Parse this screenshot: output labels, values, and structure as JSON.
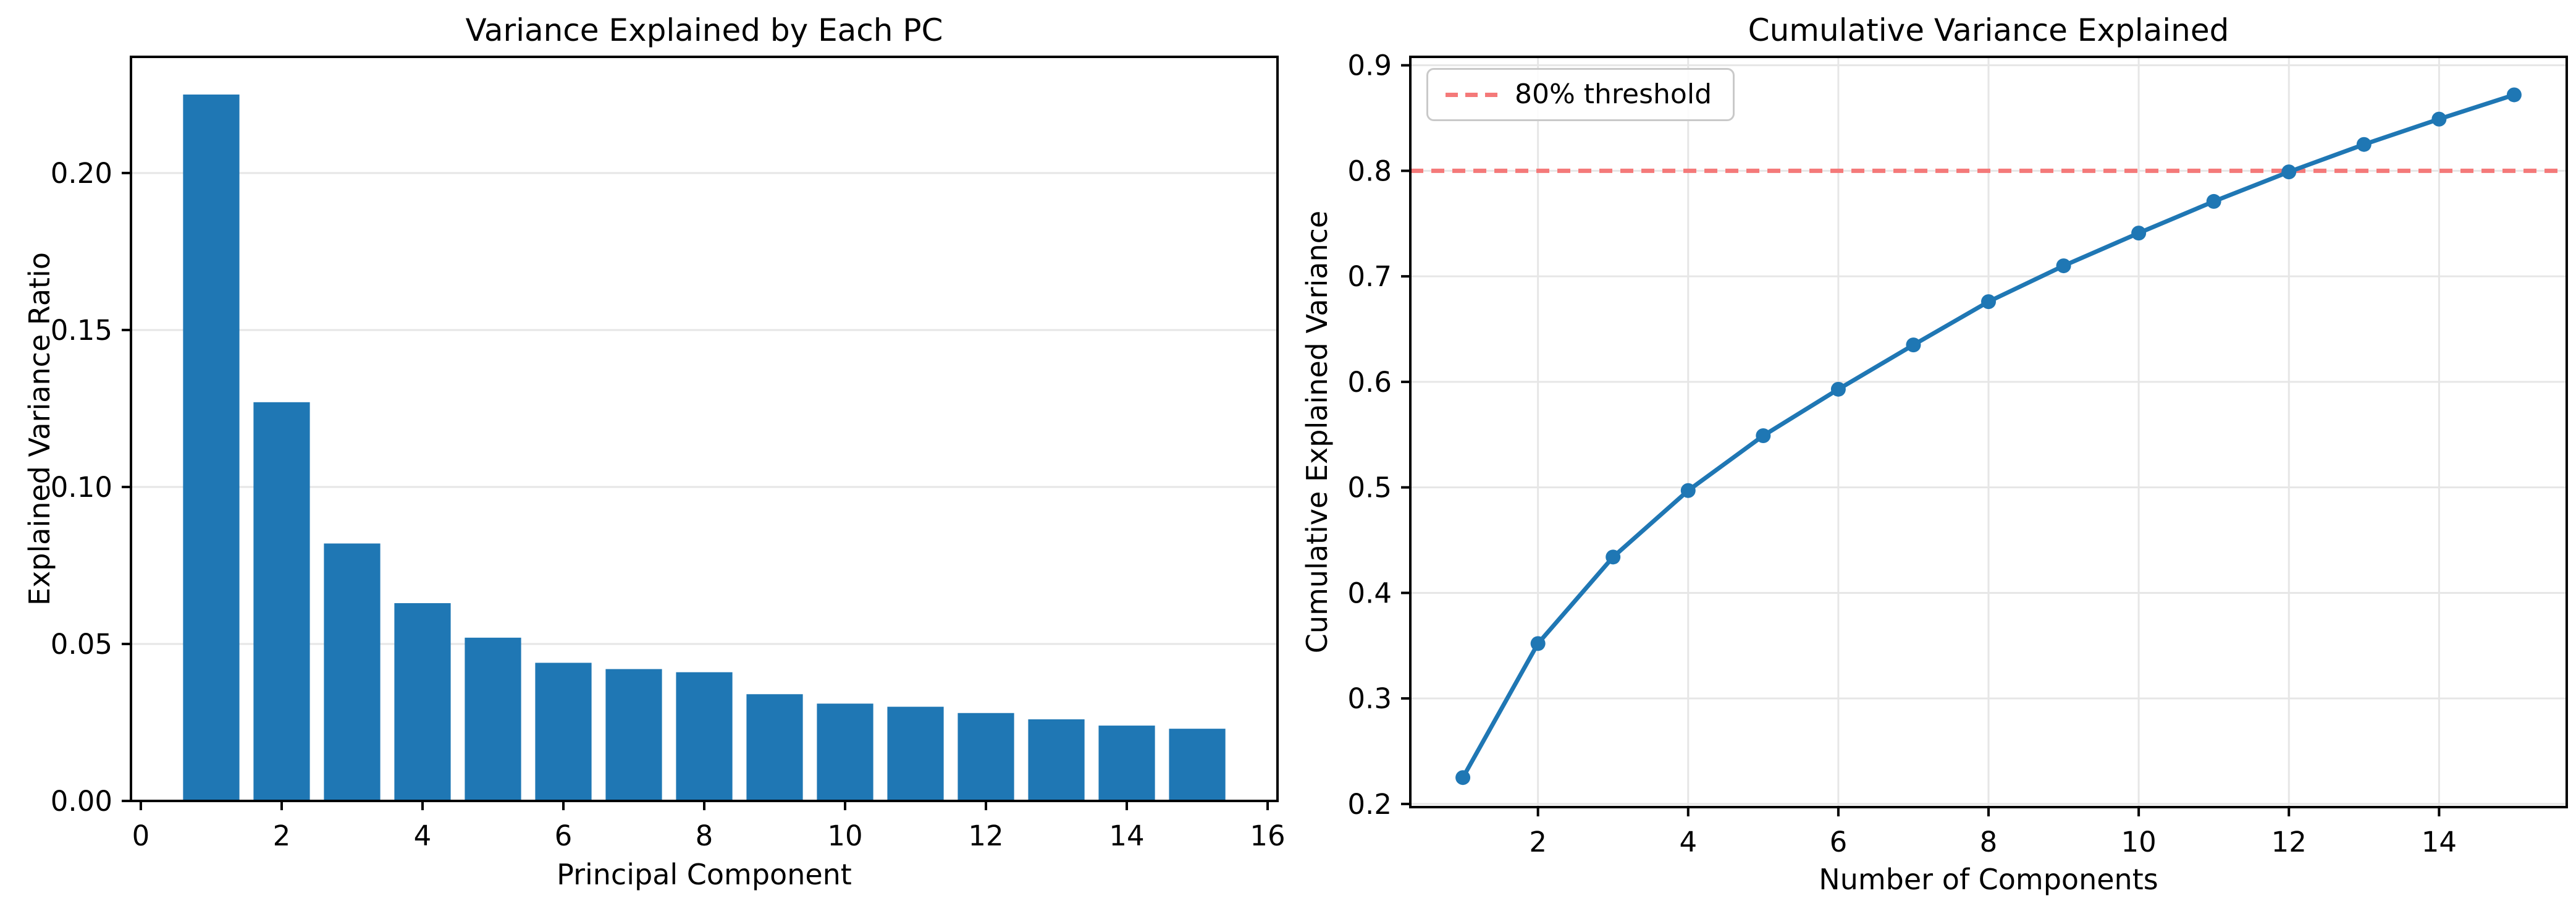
{
  "colors": {
    "series_blue": "#1f77b4",
    "threshold_red": "#f47979",
    "gridline": "#e6e6e6",
    "spine": "#000000",
    "background": "#ffffff",
    "legend_border": "#c9c9c9"
  },
  "chart_data": [
    {
      "type": "bar",
      "title": "Variance Explained by Each PC",
      "xlabel": "Principal Component",
      "ylabel": "Explained Variance Ratio",
      "categories": [
        1,
        2,
        3,
        4,
        5,
        6,
        7,
        8,
        9,
        10,
        11,
        12,
        13,
        14,
        15
      ],
      "values": [
        0.225,
        0.127,
        0.082,
        0.063,
        0.052,
        0.044,
        0.042,
        0.041,
        0.034,
        0.031,
        0.03,
        0.028,
        0.026,
        0.024,
        0.023
      ],
      "bar_color": "#1f77b4",
      "bar_width": 0.8,
      "xlim": [
        -0.14,
        16.14
      ],
      "ylim": [
        0,
        0.237
      ],
      "xticks": {
        "values": [
          0,
          2,
          4,
          6,
          8,
          10,
          12,
          14,
          16
        ],
        "labels": [
          "0",
          "2",
          "4",
          "6",
          "8",
          "10",
          "12",
          "14",
          "16"
        ]
      },
      "yticks": {
        "values": [
          0,
          0.05,
          0.1,
          0.15,
          0.2
        ],
        "labels": [
          "0.00",
          "0.05",
          "0.10",
          "0.15",
          "0.20"
        ]
      },
      "grid": "y",
      "legend": null
    },
    {
      "type": "line",
      "title": "Cumulative Variance Explained",
      "xlabel": "Number of Components",
      "ylabel": "Cumulative Explained Variance",
      "x": [
        1,
        2,
        3,
        4,
        5,
        6,
        7,
        8,
        9,
        10,
        11,
        12,
        13,
        14,
        15
      ],
      "y": [
        0.225,
        0.352,
        0.434,
        0.497,
        0.549,
        0.593,
        0.635,
        0.676,
        0.71,
        0.741,
        0.771,
        0.799,
        0.825,
        0.849,
        0.872
      ],
      "line_color": "#1f77b4",
      "marker": "o",
      "threshold_line": {
        "y": 0.8,
        "label": "80% threshold",
        "color": "#f47979",
        "style": "dashed"
      },
      "xlim": [
        0.3,
        15.7
      ],
      "ylim": [
        0.197,
        0.908
      ],
      "xticks": {
        "values": [
          2,
          4,
          6,
          8,
          10,
          12,
          14
        ],
        "labels": [
          "2",
          "4",
          "6",
          "8",
          "10",
          "12",
          "14"
        ]
      },
      "yticks": {
        "values": [
          0.2,
          0.3,
          0.4,
          0.5,
          0.6,
          0.7,
          0.8,
          0.9
        ],
        "labels": [
          "0.2",
          "0.3",
          "0.4",
          "0.5",
          "0.6",
          "0.7",
          "0.8",
          "0.9"
        ]
      },
      "grid": "both",
      "legend": {
        "position": "upper left",
        "entries": [
          {
            "label": "80% threshold"
          }
        ]
      }
    }
  ]
}
